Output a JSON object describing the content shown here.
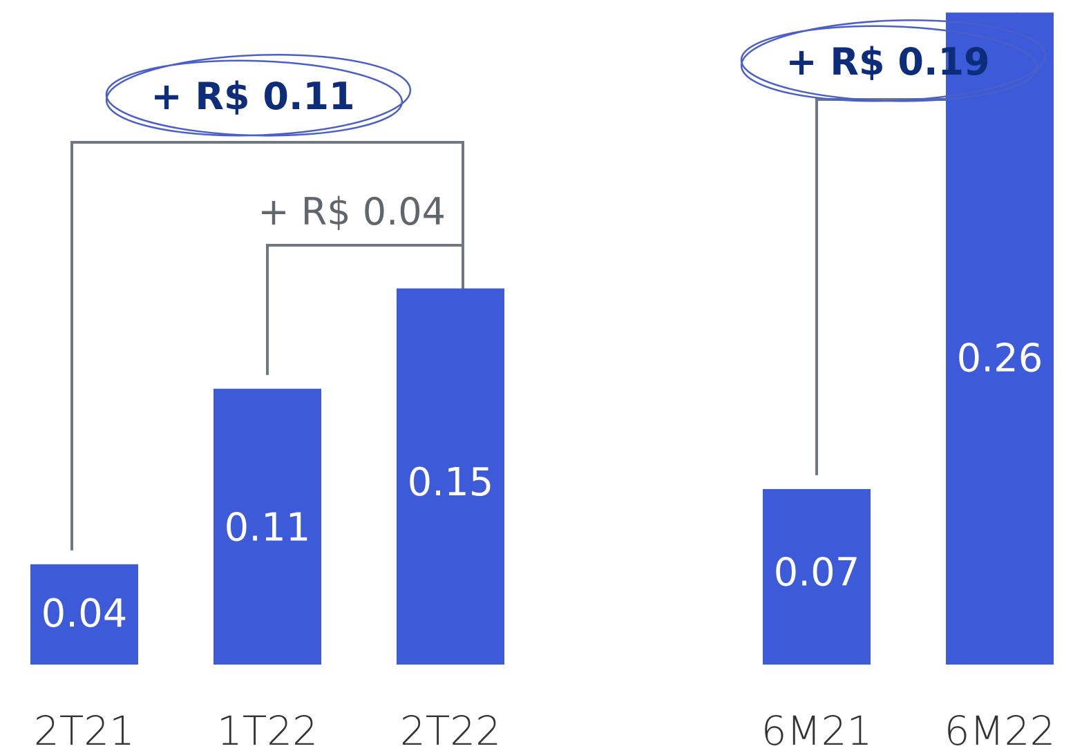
{
  "chart_data": [
    {
      "type": "bar",
      "categories": [
        "2T21",
        "1T22",
        "2T22"
      ],
      "values": [
        0.04,
        0.11,
        0.15
      ],
      "value_labels": [
        "0.04",
        "0.11",
        "0.15"
      ],
      "annotations": [
        {
          "from": "2T21",
          "to": "2T22",
          "label": "+ R$ 0.11",
          "emphasis": true
        },
        {
          "from": "1T22",
          "to": "2T22",
          "label": "+ R$ 0.04",
          "emphasis": false
        }
      ],
      "ylim": [
        0,
        0.3
      ],
      "grid": false
    },
    {
      "type": "bar",
      "categories": [
        "6M21",
        "6M22"
      ],
      "values": [
        0.07,
        0.26
      ],
      "value_labels": [
        "0.07",
        "0.26"
      ],
      "annotations": [
        {
          "from": "6M21",
          "to": "6M22",
          "label": "+ R$ 0.19",
          "emphasis": true
        }
      ],
      "ylim": [
        0,
        0.3
      ],
      "grid": false
    }
  ],
  "colors": {
    "bar": "#3d5ad8",
    "bracket": "#6f7780",
    "emphasis_text": "#0d2d7a",
    "minor_text": "#5f666d"
  }
}
